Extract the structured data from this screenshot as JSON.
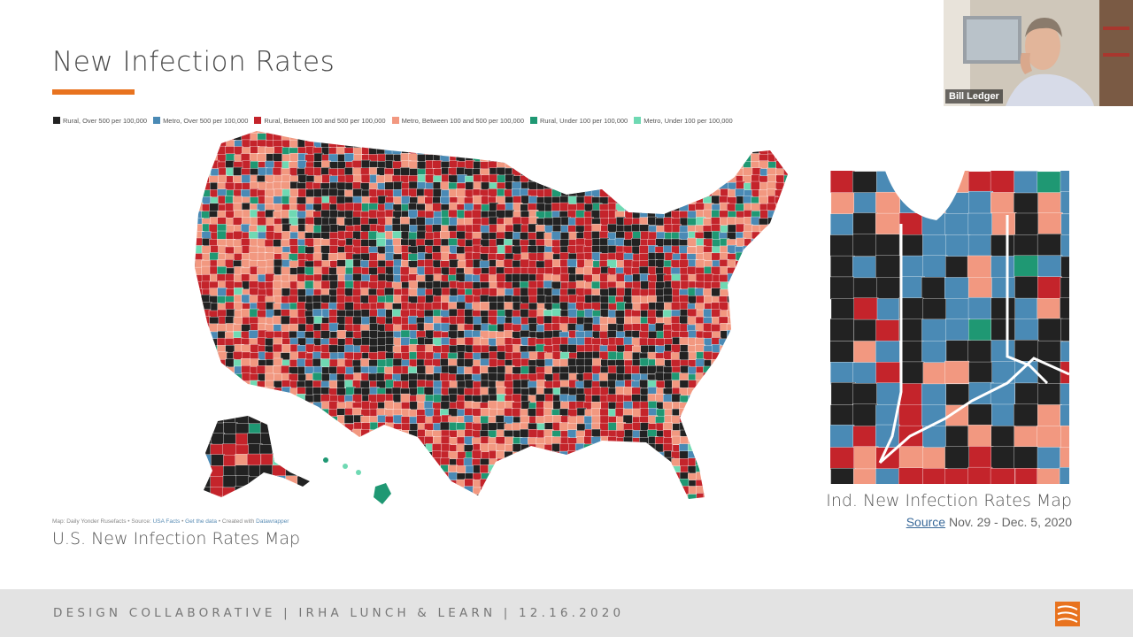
{
  "slide": {
    "title": "New Infection Rates",
    "accent_color": "#e8731f",
    "legend": [
      {
        "label": "Rural, Over 500 per 100,000",
        "color": "#222222"
      },
      {
        "label": "Metro, Over 500 per 100,000",
        "color": "#4a8ab5"
      },
      {
        "label": "Rural, Between 100 and 500 per 100,000",
        "color": "#c4242b"
      },
      {
        "label": "Metro, Between 100 and 500 per 100,000",
        "color": "#f29880"
      },
      {
        "label": "Rural, Under 100 per 100,000",
        "color": "#1f9873"
      },
      {
        "label": "Metro, Under 100 per 100,000",
        "color": "#6fd9b3"
      }
    ],
    "us_map": {
      "credit_prefix": "Map: Daily Yonder Rusefacts • Source: ",
      "credit_source": "USA Facts",
      "credit_sep1": " • ",
      "credit_data": "Get the data",
      "credit_sep2": " • Created with ",
      "credit_tool": "Datawrapper",
      "caption": "U.S. New Infection Rates Map"
    },
    "ind_map": {
      "caption": "Ind. New Infection Rates Map",
      "source_link": "Source",
      "date_range": " Nov. 29 - Dec. 5, 2020"
    },
    "footer": "DESIGN COLLABORATIVE   |   IRHA LUNCH & LEARN   |   12.16.2020"
  },
  "video": {
    "participant_name": "Bill Ledger"
  }
}
